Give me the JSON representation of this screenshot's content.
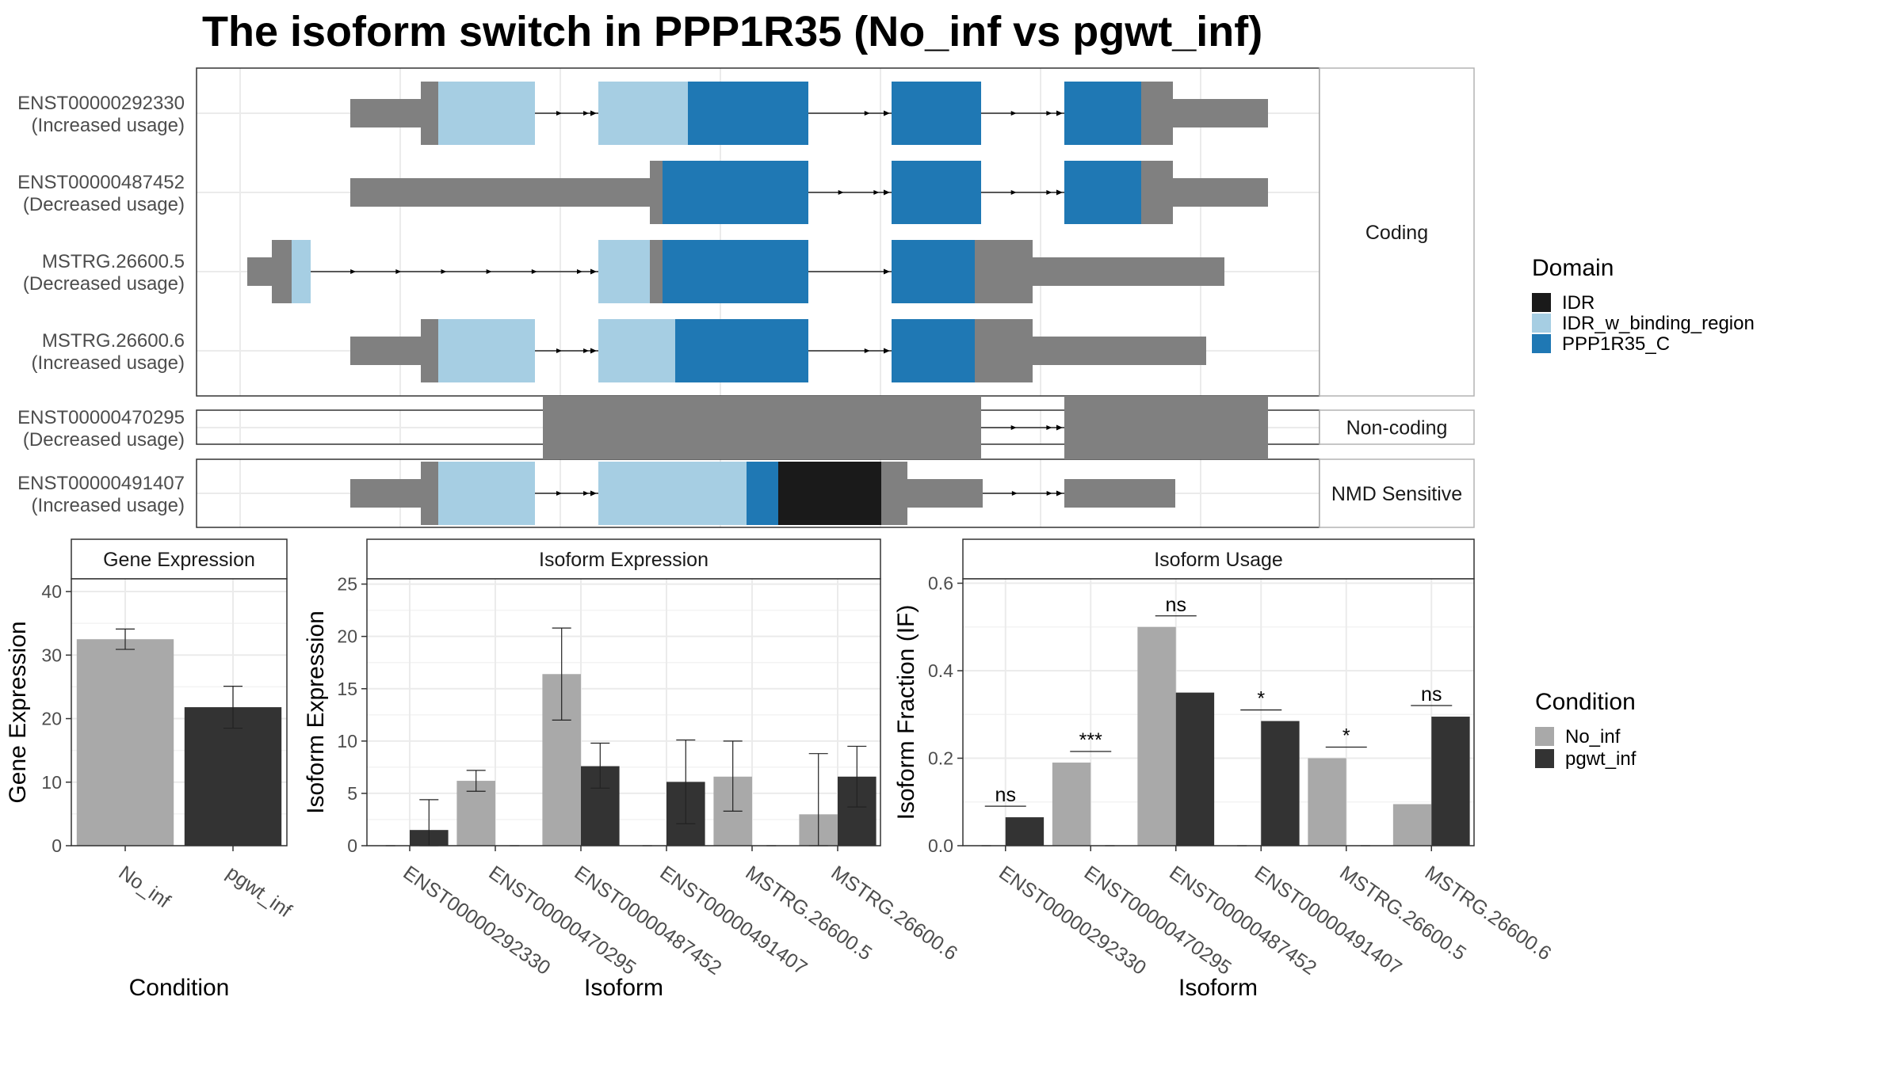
{
  "title": "The isoform switch in PPP1R35 (No_inf vs pgwt_inf)",
  "colors": {
    "IDR": "#1a1a1a",
    "IDR_w_binding_region": "#a6cee3",
    "PPP1R35_C": "#1f78b4",
    "utr": "#808080",
    "No_inf": "#a9a9a9",
    "pgwt_inf": "#333333"
  },
  "legends": {
    "domain": {
      "title": "Domain",
      "items": [
        "IDR",
        "IDR_w_binding_region",
        "PPP1R35_C"
      ]
    },
    "condition": {
      "title": "Condition",
      "items": [
        "No_inf",
        "pgwt_inf"
      ]
    }
  },
  "structure_panels": [
    {
      "label": "Coding",
      "isoforms": [
        {
          "id": "ENST00000292330",
          "usage": "(Increased usage)",
          "segments": [
            [
              320,
              560,
              "utr"
            ],
            [
              560,
              615,
              "IDR_w_binding_region"
            ],
            [
              615,
              640,
              "utr"
            ],
            [
              640,
              667,
              "PPP1R35_C"
            ],
            [
              667,
              690,
              "PPP1R35_C"
            ],
            [
              690,
              730,
              "utr"
            ],
            [
              730,
              742,
              "PPP1R35_C"
            ],
            [
              742,
              760,
              "utr"
            ]
          ]
        },
        {
          "id": "ENST00000487452",
          "usage": "(Decreased usage)",
          "segments": [
            [
              250,
              485,
              "utr"
            ],
            [
              485,
              545,
              "PPP1R35_C"
            ],
            [
              560,
              640,
              "PPP1R35_C"
            ],
            [
              640,
              667,
              "PPP1R35_C"
            ],
            [
              667,
              690,
              "PPP1R35_C"
            ],
            [
              690,
              730,
              "utr"
            ]
          ]
        },
        {
          "id": "MSTRG.26600.5",
          "usage": "(Decreased usage)",
          "segments": []
        },
        {
          "id": "MSTRG.26600.6",
          "usage": "(Increased usage)",
          "segments": []
        }
      ]
    },
    {
      "label": "Non-coding",
      "isoforms": [
        {
          "id": "ENST00000470295",
          "usage": "(Decreased usage)",
          "segments": []
        }
      ]
    },
    {
      "label": "NMD Sensitive",
      "isoforms": [
        {
          "id": "ENST00000491407",
          "usage": "(Increased usage)",
          "segments": []
        }
      ]
    }
  ],
  "chart_data": [
    {
      "type": "bar",
      "title": "Gene Expression",
      "xlabel": "Condition",
      "ylabel": "Gene Expression",
      "ylim": [
        0,
        42
      ],
      "yticks": [
        0,
        10,
        20,
        30,
        40
      ],
      "categories": [
        "No_inf",
        "pgwt_inf"
      ],
      "values": [
        32.5,
        21.8
      ],
      "errors": [
        [
          30.9,
          34.1
        ],
        [
          18.5,
          25.1
        ]
      ]
    },
    {
      "type": "bar",
      "title": "Isoform Expression",
      "xlabel": "Isoform",
      "ylabel": "Isoform Expression",
      "ylim": [
        0,
        25.5
      ],
      "yticks": [
        0,
        5,
        10,
        15,
        20,
        25
      ],
      "categories": [
        "ENST00000292330",
        "ENST00000470295",
        "ENST00000487452",
        "ENST00000491407",
        "MSTRG.26600.5",
        "MSTRG.26600.6"
      ],
      "series": [
        {
          "name": "No_inf",
          "values": [
            0,
            6.2,
            16.4,
            0,
            6.6,
            3.0
          ],
          "errors": [
            null,
            [
              5.2,
              7.2
            ],
            [
              12.0,
              20.8
            ],
            null,
            [
              3.3,
              10.0
            ],
            [
              0.0,
              8.8
            ]
          ]
        },
        {
          "name": "pgwt_inf",
          "values": [
            1.5,
            0,
            7.6,
            6.1,
            0,
            6.6
          ],
          "errors": [
            [
              0.0,
              4.4
            ],
            null,
            [
              5.5,
              9.8
            ],
            [
              2.1,
              10.1
            ],
            null,
            [
              3.7,
              9.5
            ]
          ]
        }
      ]
    },
    {
      "type": "bar",
      "title": "Isoform Usage",
      "xlabel": "Isoform",
      "ylabel": "Isoform Fraction (IF)",
      "ylim": [
        0,
        0.61
      ],
      "yticks": [
        "0.0",
        "0.2",
        "0.4",
        "0.6"
      ],
      "categories": [
        "ENST00000292330",
        "ENST00000470295",
        "ENST00000487452",
        "ENST00000491407",
        "MSTRG.26600.5",
        "MSTRG.26600.6"
      ],
      "series": [
        {
          "name": "No_inf",
          "values": [
            0,
            0.19,
            0.5,
            0,
            0.2,
            0.095
          ]
        },
        {
          "name": "pgwt_inf",
          "values": [
            0.065,
            0,
            0.35,
            0.285,
            0,
            0.295
          ]
        }
      ],
      "significance": [
        "ns",
        "***",
        "ns",
        "*",
        "*",
        "ns"
      ]
    }
  ]
}
